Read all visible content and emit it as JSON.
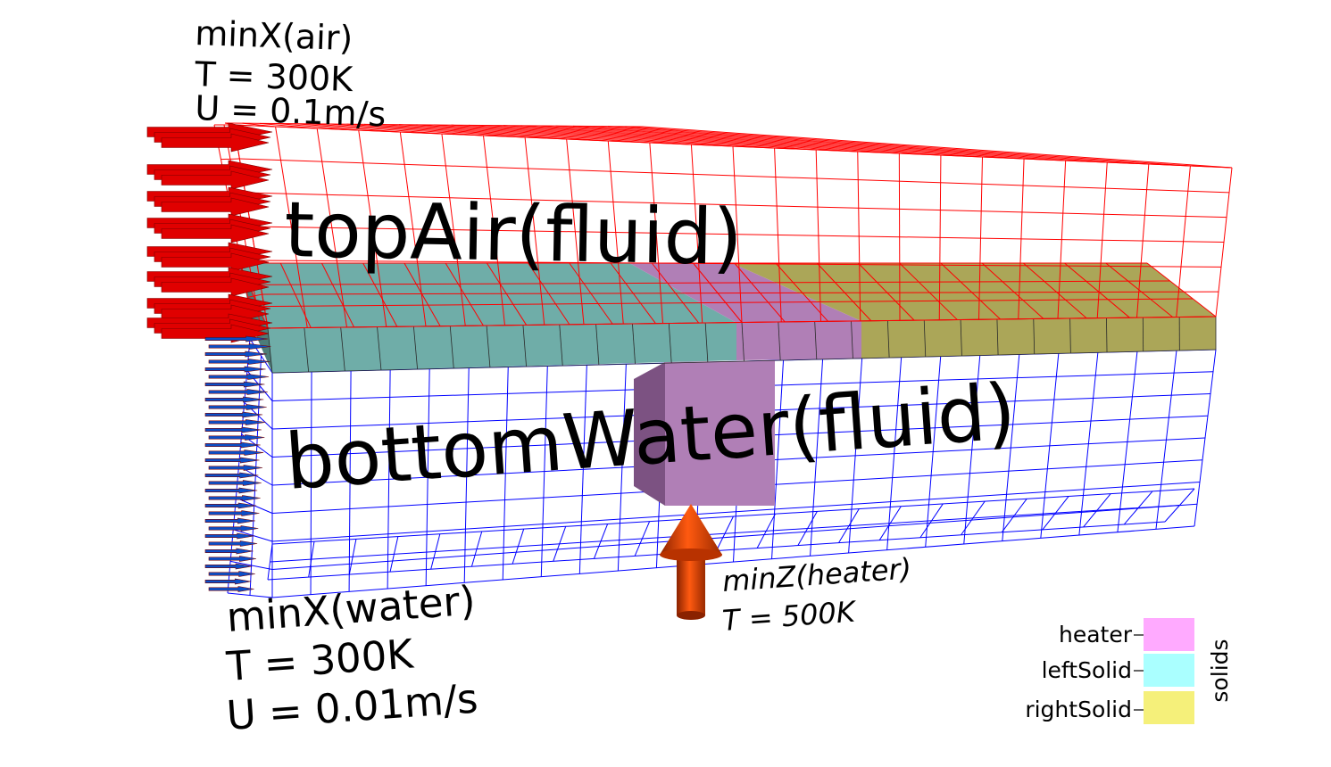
{
  "labels": {
    "top_inlet": {
      "line1": "minX(air)",
      "line2": "T = 300K",
      "line3": "U = 0.1m/s"
    },
    "top_region": "topAir(fluid)",
    "bottom_region": "bottomWater(fluid)",
    "bottom_inlet": {
      "line1": "minX(water)",
      "line2": "T = 300K",
      "line3": "U = 0.01m/s"
    },
    "heater_bc": {
      "line1": "minZ(heater)",
      "line2": "T = 500K"
    }
  },
  "legend": {
    "title": "solids",
    "entries": [
      {
        "label": "heater",
        "color": "#ffaaff"
      },
      {
        "label": "leftSolid",
        "color": "#aaffff"
      },
      {
        "label": "rightSolid",
        "color": "#f5f07a"
      }
    ]
  },
  "colors": {
    "air_mesh": "#ff0000",
    "water_mesh": "#0000ff",
    "left_solid": "#6fada8",
    "heater": "#b07fb6",
    "right_solid": "#aba658",
    "air_arrow": "#e00000",
    "water_arrow": "#0a4fc8",
    "heater_arrow": "#e04000"
  }
}
